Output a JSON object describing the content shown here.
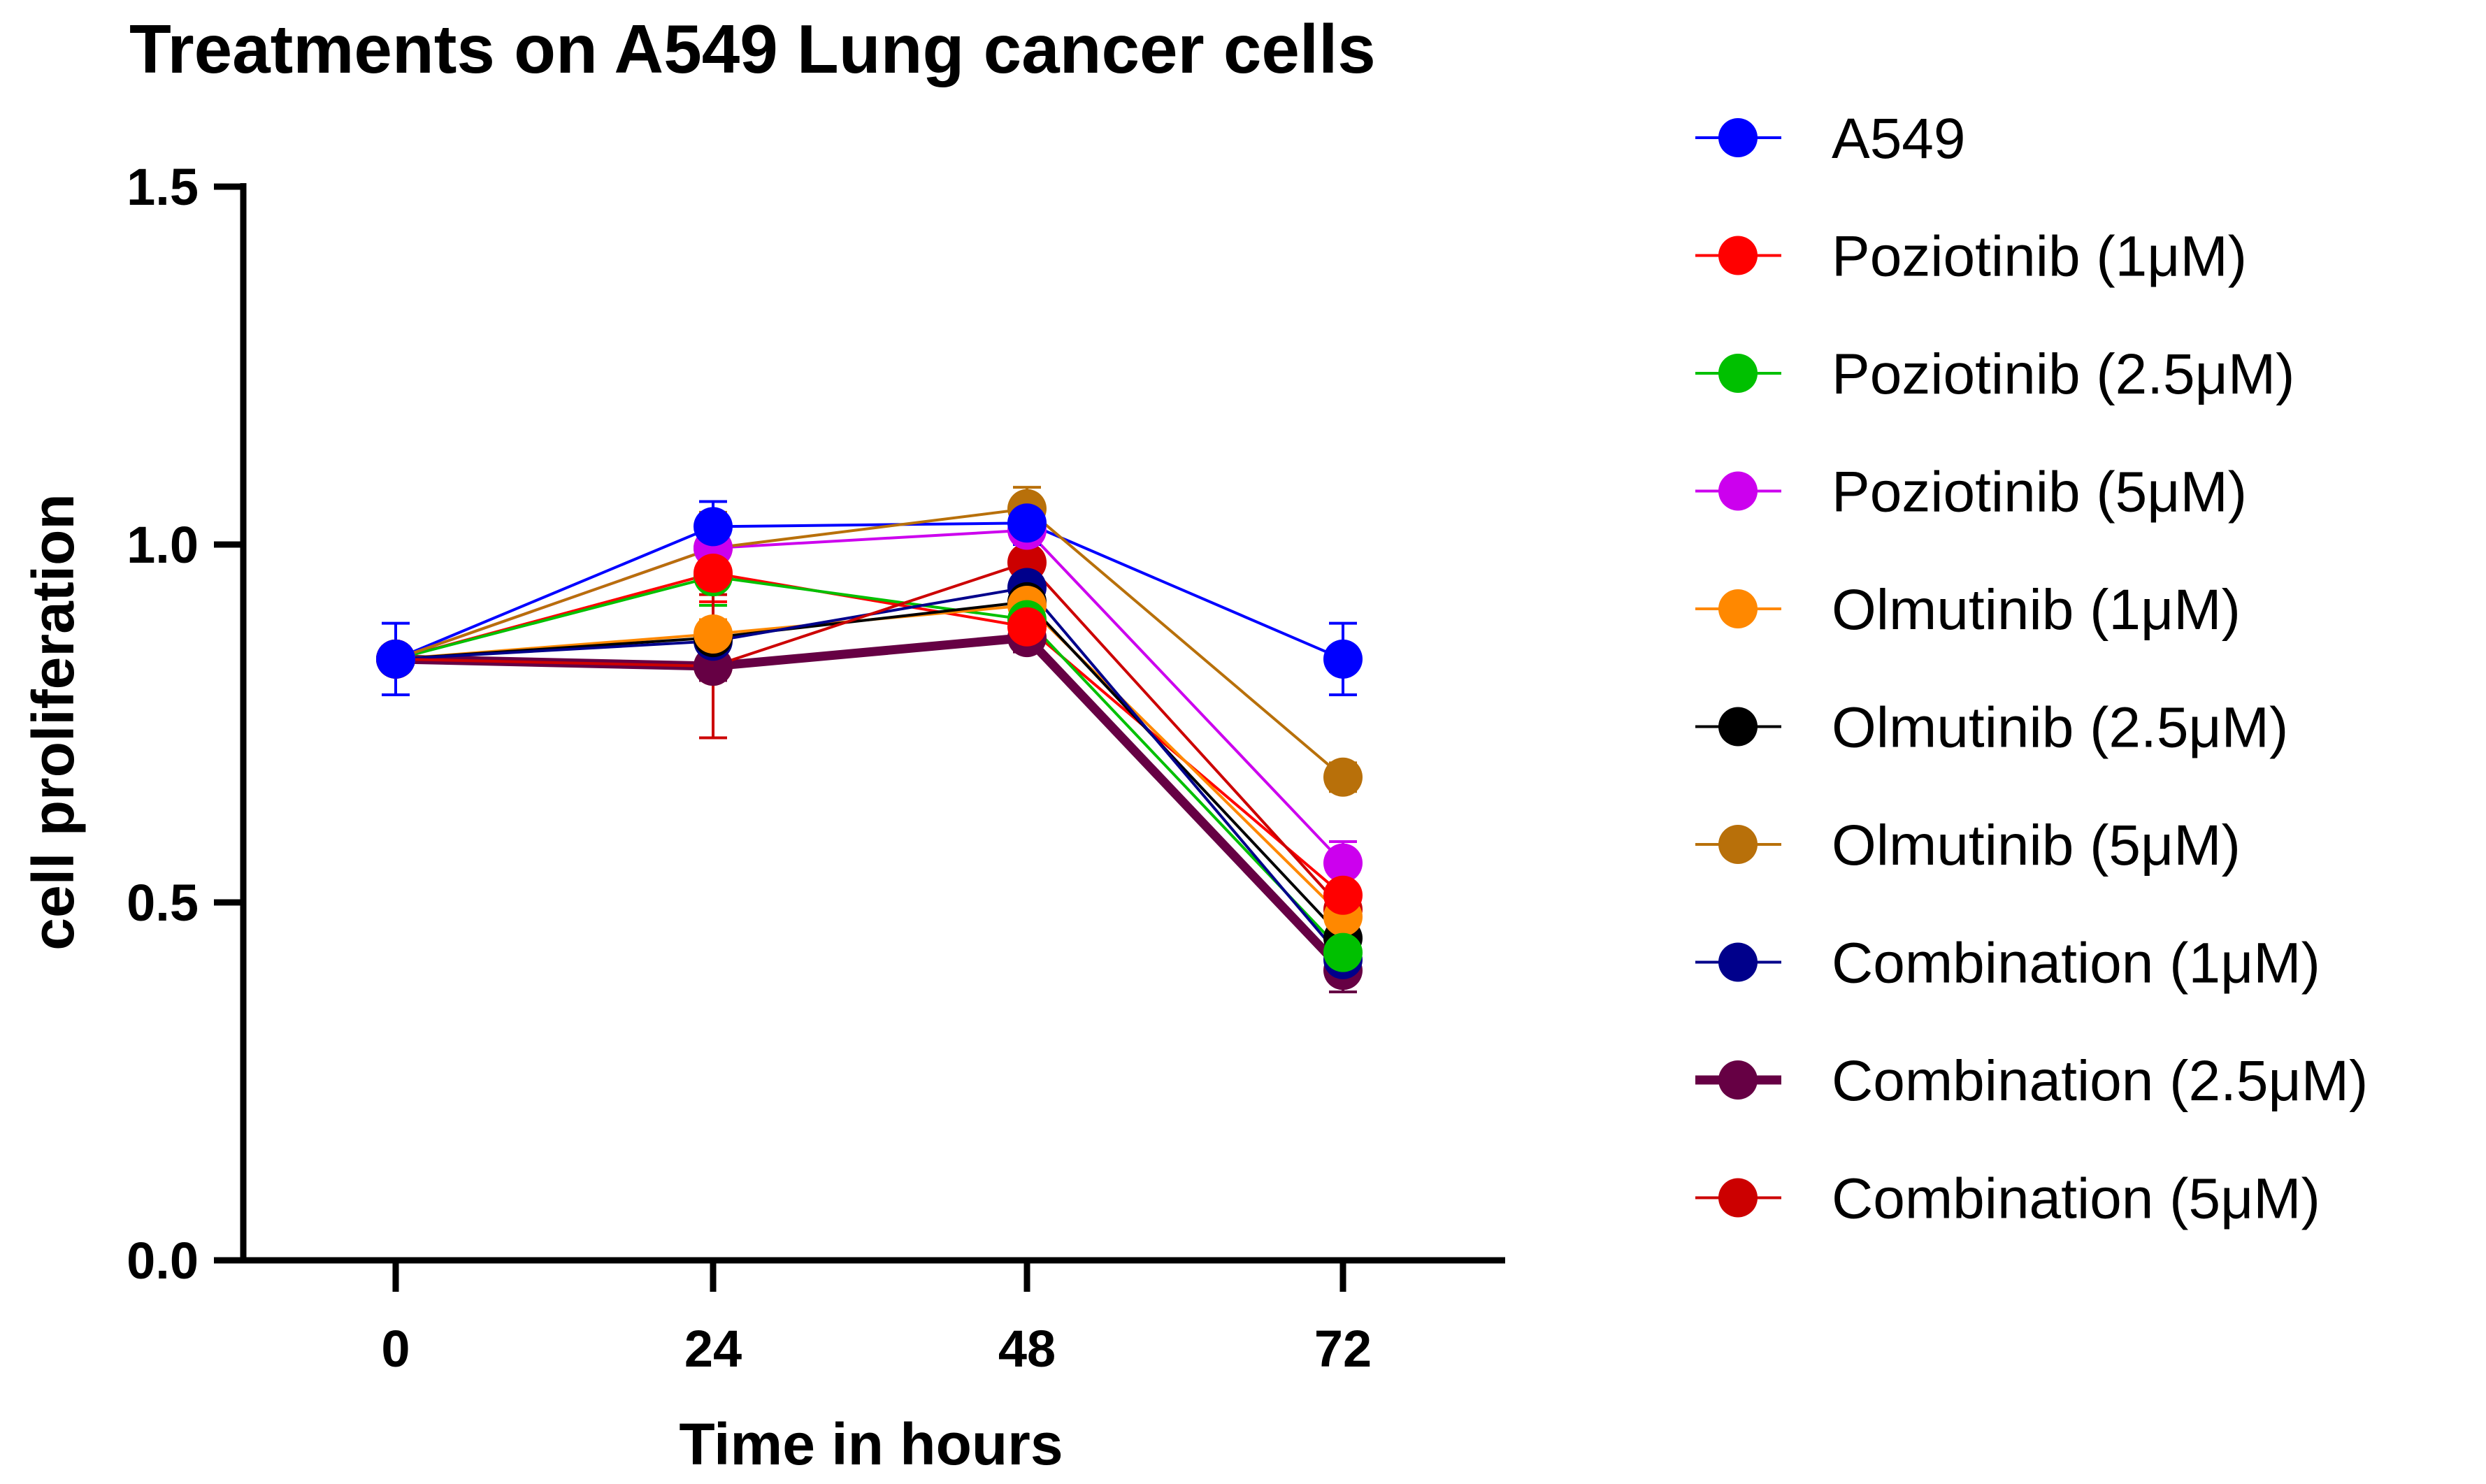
{
  "chart_data": {
    "type": "line",
    "title": "Treatments on A549 Lung cancer cells",
    "xlabel": "Time in hours",
    "ylabel": "cell proliferation",
    "x": [
      0,
      24,
      48,
      72
    ],
    "x_tick_labels": [
      "0",
      "24",
      "48",
      "72"
    ],
    "ylim": [
      0,
      1.5
    ],
    "y_ticks": [
      0.0,
      0.5,
      1.0,
      1.5
    ],
    "y_tick_labels": [
      "0.0",
      "0.5",
      "1.0",
      "1.5"
    ],
    "legend_position": "right",
    "series": [
      {
        "name": "A549",
        "color": "#0000ff",
        "width": 4,
        "values": [
          0.84,
          1.025,
          1.03,
          0.84
        ],
        "errors": [
          0.05,
          0.035,
          0.03,
          0.05
        ]
      },
      {
        "name": "Poziotinib (1μM)",
        "color": "#ff0000",
        "width": 4,
        "values": [
          0.84,
          0.96,
          0.885,
          0.51
        ],
        "errors": [
          0,
          0.04,
          0.02,
          0.03
        ]
      },
      {
        "name": "Poziotinib (2.5μM)",
        "color": "#00c000",
        "width": 4,
        "values": [
          0.84,
          0.955,
          0.895,
          0.43
        ],
        "errors": [
          0,
          0.04,
          0.02,
          0.02
        ]
      },
      {
        "name": "Poziotinib (5μM)",
        "color": "#cc00ee",
        "width": 4,
        "values": [
          0.84,
          0.995,
          1.02,
          0.555
        ],
        "errors": [
          0,
          0.04,
          0.03,
          0.03
        ]
      },
      {
        "name": "Olmutinib (1μM)",
        "color": "#ff8800",
        "width": 4,
        "values": [
          0.84,
          0.875,
          0.915,
          0.48
        ],
        "errors": [
          0,
          0.02,
          0.02,
          0.02
        ]
      },
      {
        "name": "Olmutinib (2.5μM)",
        "color": "#000000",
        "width": 4,
        "values": [
          0.84,
          0.87,
          0.92,
          0.45
        ],
        "errors": [
          0,
          0.02,
          0.02,
          0.02
        ]
      },
      {
        "name": "Olmutinib (5μM)",
        "color": "#b8700a",
        "width": 4,
        "values": [
          0.84,
          0.995,
          1.05,
          0.675
        ],
        "errors": [
          0,
          0.05,
          0.03,
          0.02
        ]
      },
      {
        "name": "Combination (1μM)",
        "color": "#00008b",
        "width": 4,
        "values": [
          0.84,
          0.865,
          0.94,
          0.42
        ],
        "errors": [
          0,
          0.02,
          0.02,
          0.02
        ]
      },
      {
        "name": "Combination (2.5μM)",
        "color": "#660044",
        "width": 13,
        "values": [
          0.84,
          0.83,
          0.87,
          0.405
        ],
        "errors": [
          0,
          0.02,
          0.02,
          0.03
        ]
      },
      {
        "name": "Combination (5μM)",
        "color": "#cc0000",
        "width": 4,
        "values": [
          0.84,
          0.83,
          0.975,
          0.49
        ],
        "errors": [
          0,
          0.1,
          0.03,
          0.02
        ]
      }
    ]
  }
}
